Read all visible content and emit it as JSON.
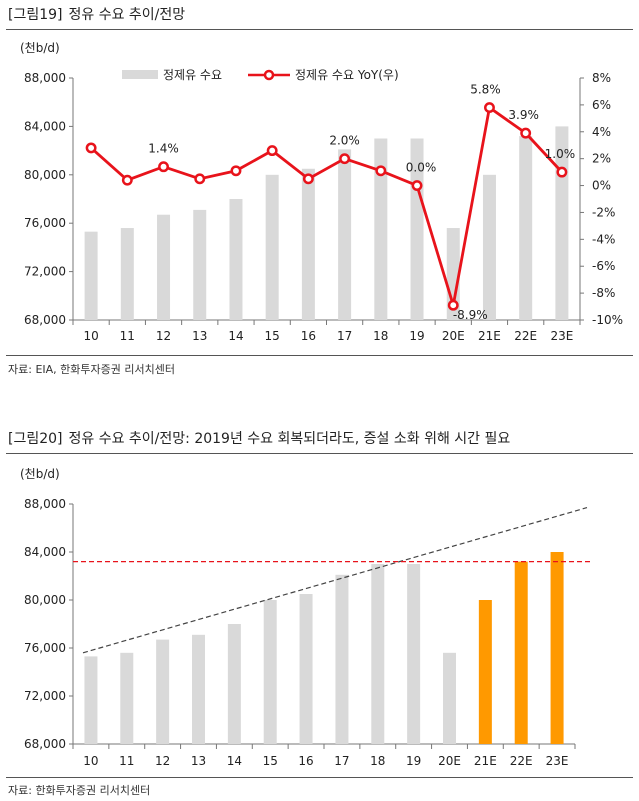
{
  "figure1": {
    "tag": "[그림19]",
    "title": "정유 수요 추이/전망",
    "source": "자료: EIA, 한화투자증권 리서치센터"
  },
  "figure2": {
    "tag": "[그림20]",
    "title": "정유 수요 추이/전망: 2019년 수요 회복되더라도, 증설 소화 위해 시간 필요",
    "source": "자료: 한화투자증권 리서치센터"
  },
  "colors": {
    "bar_gray": "#d9d9d9",
    "bar_orange": "#ff9900",
    "line_red": "#e8131b",
    "trend": "#444444",
    "ref_line": "#e8131b"
  },
  "chart_data": [
    {
      "type": "bar",
      "combo_line": true,
      "unit_label": "(천b/d)",
      "categories": [
        "10",
        "11",
        "12",
        "13",
        "14",
        "15",
        "16",
        "17",
        "18",
        "19",
        "20E",
        "21E",
        "22E",
        "23E"
      ],
      "ylim": [
        68000,
        88000
      ],
      "yticks": [
        68000,
        72000,
        76000,
        80000,
        84000,
        88000
      ],
      "ytick_labels": [
        "68,000",
        "72,000",
        "76,000",
        "80,000",
        "84,000",
        "88,000"
      ],
      "y2lim": [
        -10,
        8
      ],
      "y2ticks": [
        -10,
        -8,
        -6,
        -4,
        -2,
        0,
        2,
        4,
        6,
        8
      ],
      "y2tick_labels": [
        "-10%",
        "-8%",
        "-6%",
        "-4%",
        "-2%",
        "0%",
        "2%",
        "4%",
        "6%",
        "8%"
      ],
      "legend_position": "top",
      "series": [
        {
          "name": "정제유 수요",
          "kind": "bar",
          "axis": "left",
          "values": [
            75300,
            75600,
            76700,
            77100,
            78000,
            80000,
            80500,
            82100,
            83000,
            83000,
            75600,
            80000,
            83200,
            84000
          ]
        },
        {
          "name": "정제유 수요 YoY(우)",
          "kind": "line",
          "axis": "right",
          "values": [
            2.8,
            0.4,
            1.4,
            0.5,
            1.1,
            2.6,
            0.5,
            2.0,
            1.1,
            0.0,
            -8.9,
            5.8,
            3.9,
            1.0
          ]
        }
      ],
      "data_labels": [
        {
          "index": 2,
          "text": "1.4%"
        },
        {
          "index": 7,
          "text": "2.0%"
        },
        {
          "index": 9,
          "text": "0.0%"
        },
        {
          "index": 10,
          "text": "-8.9%"
        },
        {
          "index": 11,
          "text": "5.8%"
        },
        {
          "index": 12,
          "text": "3.9%"
        },
        {
          "index": 13,
          "text": "1.0%"
        }
      ]
    },
    {
      "type": "bar",
      "unit_label": "(천b/d)",
      "categories": [
        "10",
        "11",
        "12",
        "13",
        "14",
        "15",
        "16",
        "17",
        "18",
        "19",
        "20E",
        "21E",
        "22E",
        "23E"
      ],
      "ylim": [
        68000,
        88000
      ],
      "yticks": [
        68000,
        72000,
        76000,
        80000,
        84000,
        88000
      ],
      "ytick_labels": [
        "68,000",
        "72,000",
        "76,000",
        "80,000",
        "84,000",
        "88,000"
      ],
      "series": [
        {
          "values": [
            75300,
            75600,
            76700,
            77100,
            78000,
            80000,
            80500,
            82100,
            83000,
            83000,
            75600,
            80000,
            83200,
            84000
          ],
          "highlight_from_index": 11
        }
      ],
      "trend_line": {
        "from": [
          0,
          75600
        ],
        "to": [
          14,
          87700
        ]
      },
      "reference_line": {
        "y": 83200
      }
    }
  ]
}
